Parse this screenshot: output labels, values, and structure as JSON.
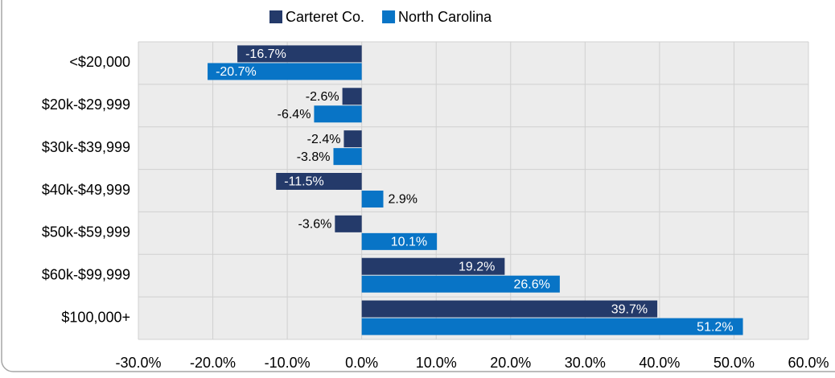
{
  "chart_data": {
    "type": "barh",
    "categories": [
      "<$20,000",
      "$20k-$29,999",
      "$30k-$39,999",
      "$40k-$49,999",
      "$50k-$59,999",
      "$60k-$99,999",
      "$100,000+"
    ],
    "series": [
      {
        "name": "Carteret Co.",
        "color": "#243a6a",
        "values": [
          -16.7,
          -2.6,
          -2.4,
          -11.5,
          -3.6,
          19.2,
          39.7
        ],
        "value_labels": [
          "-16.7%",
          "-2.6%",
          "-2.4%",
          "-11.5%",
          "-3.6%",
          "19.2%",
          "39.7%"
        ]
      },
      {
        "name": "North Carolina",
        "color": "#0874c6",
        "values": [
          -20.7,
          -6.4,
          -3.8,
          2.9,
          10.1,
          26.6,
          51.2
        ],
        "value_labels": [
          "-20.7%",
          "-6.4%",
          "-3.8%",
          "2.9%",
          "10.1%",
          "26.6%",
          "51.2%"
        ]
      }
    ],
    "xlim": [
      -30,
      60
    ],
    "xticks": [
      {
        "value": -30,
        "label": "-30.0%"
      },
      {
        "value": -20,
        "label": "-20.0%"
      },
      {
        "value": -10,
        "label": "-10.0%"
      },
      {
        "value": 0,
        "label": "0.0%"
      },
      {
        "value": 10,
        "label": "10.0%"
      },
      {
        "value": 20,
        "label": "20.0%"
      },
      {
        "value": 30,
        "label": "30.0%"
      },
      {
        "value": 40,
        "label": "40.0%"
      },
      {
        "value": 50,
        "label": "50.0%"
      },
      {
        "value": 60,
        "label": "60.0%"
      }
    ],
    "grid": true,
    "legend": "top"
  }
}
